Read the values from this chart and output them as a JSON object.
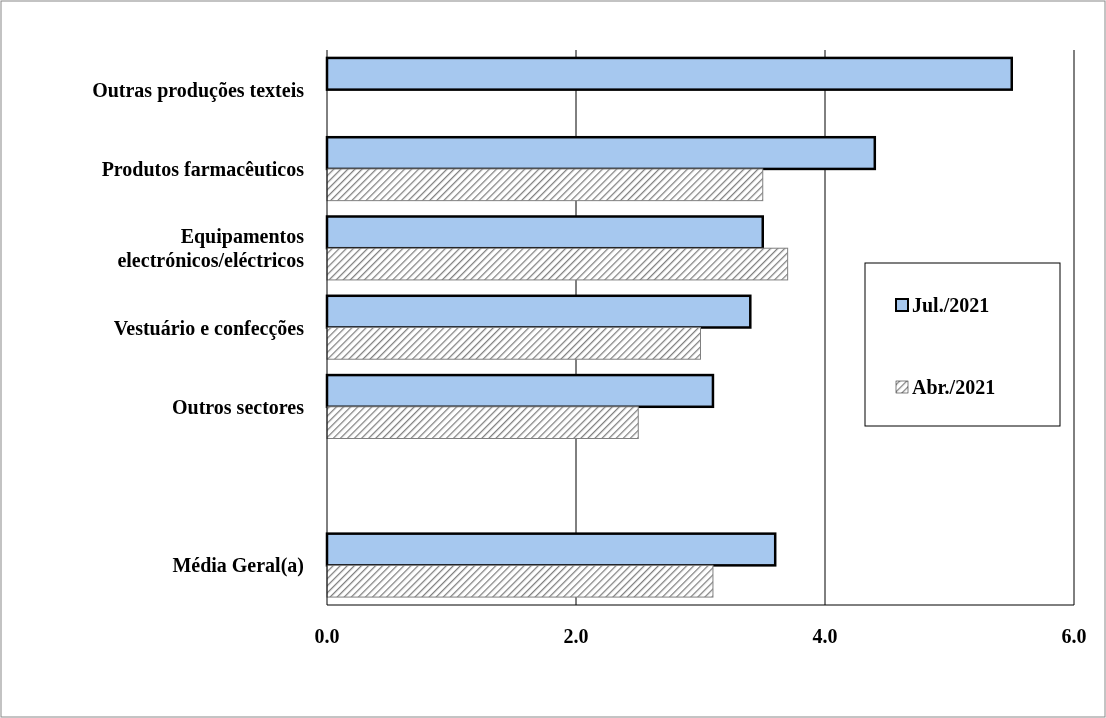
{
  "chart_data": {
    "type": "bar",
    "orientation": "horizontal",
    "categories": [
      "Outras produções texteis",
      "Produtos farmacêuticos",
      "Equipamentos electrónicos/eléctricos",
      "Vestuário e confecções",
      "Outros sectores",
      null,
      "Média Geral(a)"
    ],
    "series": [
      {
        "name": "Jul./2021",
        "color": "#a6c8ef",
        "values": [
          5.5,
          4.4,
          3.5,
          3.4,
          3.1,
          null,
          3.6
        ]
      },
      {
        "name": "Abr./2021",
        "color": "#808080",
        "values": [
          null,
          3.5,
          3.7,
          3.0,
          2.5,
          null,
          3.1
        ]
      }
    ],
    "xlim": [
      0,
      6
    ],
    "xticks": [
      {
        "value": 0,
        "label": "0.0"
      },
      {
        "value": 2,
        "label": "2.0"
      },
      {
        "value": 4,
        "label": "4.0"
      },
      {
        "value": 6,
        "label": "6.0"
      }
    ],
    "grid": "x",
    "legend": "right"
  }
}
